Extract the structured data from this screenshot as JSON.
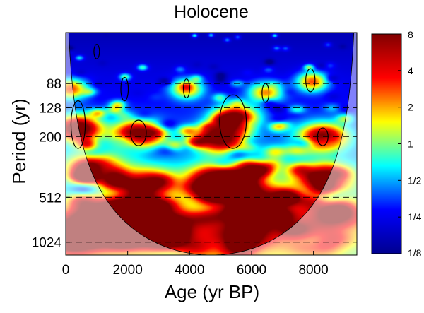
{
  "chart_data": {
    "type": "heatmap",
    "title": "Holocene",
    "xlabel": "Age (yr BP)",
    "ylabel": "Period (yr)",
    "xlim": [
      0,
      9400
    ],
    "xticks": [
      0,
      2000,
      4000,
      6000,
      8000
    ],
    "xtick_labels": [
      "0",
      "2000",
      "4000",
      "6000",
      "8000"
    ],
    "yscale": "log2",
    "ylim": [
      40,
      1250
    ],
    "yticks": [
      88,
      128,
      200,
      512,
      1024
    ],
    "ytick_labels": [
      "88",
      "128",
      "200",
      "512",
      "1024"
    ],
    "dashed_period_lines": [
      88,
      128,
      200,
      512,
      1024
    ],
    "colorbar": {
      "scale": "log2",
      "range": [
        0.125,
        8
      ],
      "ticks": [
        8,
        4,
        2,
        1,
        0.5,
        0.25,
        0.125
      ],
      "tick_labels": [
        "8",
        "4",
        "2",
        "1",
        "1/2",
        "1/4",
        "1/8"
      ],
      "colormap": "jet",
      "colors": [
        "#00008f",
        "#0000ff",
        "#00ffff",
        "#ffff00",
        "#ff0000",
        "#800000"
      ]
    },
    "cone_of_influence_max_period": 1250,
    "significance_regions": [
      {
        "age_center": 400,
        "age_halfwidth": 230,
        "period_low": 115,
        "period_high": 240
      },
      {
        "age_center": 2350,
        "age_halfwidth": 250,
        "period_low": 155,
        "period_high": 230
      },
      {
        "age_center": 5400,
        "age_halfwidth": 430,
        "period_low": 105,
        "period_high": 240
      },
      {
        "age_center": 8300,
        "age_halfwidth": 170,
        "period_low": 175,
        "period_high": 230
      },
      {
        "age_center": 7900,
        "age_halfwidth": 150,
        "period_low": 70,
        "period_high": 100
      },
      {
        "age_center": 1900,
        "age_halfwidth": 120,
        "period_low": 80,
        "period_high": 115
      },
      {
        "age_center": 3900,
        "age_halfwidth": 100,
        "period_low": 82,
        "period_high": 110
      },
      {
        "age_center": 6450,
        "age_halfwidth": 110,
        "period_low": 88,
        "period_high": 118
      },
      {
        "age_center": 1000,
        "age_halfwidth": 90,
        "period_low": 48,
        "period_high": 60
      }
    ],
    "power_features": [
      {
        "age": 400,
        "period": 175,
        "power": 8
      },
      {
        "age": 150,
        "period": 95,
        "power": 2
      },
      {
        "age": 2300,
        "period": 190,
        "power": 6
      },
      {
        "age": 5450,
        "period": 150,
        "power": 8
      },
      {
        "age": 5000,
        "period": 205,
        "power": 6
      },
      {
        "age": 8300,
        "period": 200,
        "power": 5
      },
      {
        "age": 2500,
        "period": 420,
        "power": 3
      },
      {
        "age": 4900,
        "period": 400,
        "power": 4
      },
      {
        "age": 5400,
        "period": 420,
        "power": 3
      },
      {
        "age": 6200,
        "period": 560,
        "power": 2
      },
      {
        "age": 900,
        "period": 320,
        "power": 2
      },
      {
        "age": 1200,
        "period": 750,
        "power": 4
      },
      {
        "age": 2300,
        "period": 650,
        "power": 4
      },
      {
        "age": 3000,
        "period": 850,
        "power": 3
      },
      {
        "age": 5800,
        "period": 900,
        "power": 3
      },
      {
        "age": 8300,
        "period": 380,
        "power": 2
      },
      {
        "age": 8600,
        "period": 700,
        "power": 2
      },
      {
        "age": 400,
        "period": 900,
        "power": 2
      },
      {
        "age": 7950,
        "period": 85,
        "power": 2
      },
      {
        "age": 3900,
        "period": 95,
        "power": 1.5
      },
      {
        "age": 6450,
        "period": 100,
        "power": 1.5
      }
    ]
  }
}
